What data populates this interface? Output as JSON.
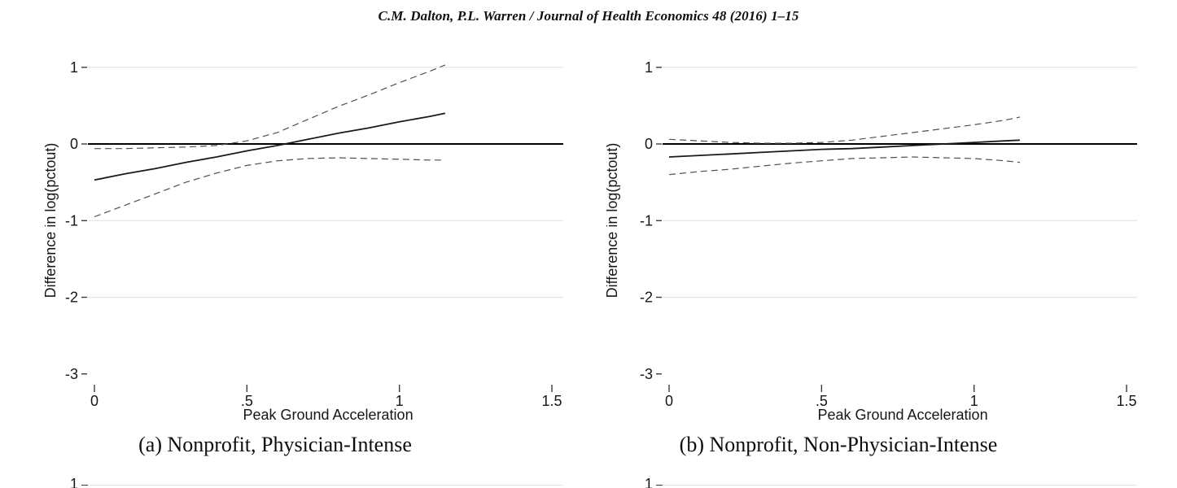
{
  "header": {
    "citation": "C.M. Dalton, P.L. Warren / Journal of Health Economics 48 (2016) 1–15"
  },
  "colors": {
    "grid": "#dce8ea",
    "zero_line": "#000000",
    "fit_line": "#1a1a1a",
    "ci_line": "#4f4f4f",
    "text": "#161616"
  },
  "chart_data": [
    {
      "type": "line",
      "title": "(a) Nonprofit, Physician-Intense",
      "xlabel": "Peak Ground Acceleration",
      "ylabel": "Difference in log(pctout)",
      "xlim": [
        0,
        1.5
      ],
      "ylim": [
        -3,
        1
      ],
      "xticks": [
        0,
        0.5,
        1,
        1.5
      ],
      "xtick_labels": [
        "0",
        ".5",
        "1",
        "1.5"
      ],
      "yticks": [
        1,
        0,
        -1,
        -2,
        -3
      ],
      "ytick_labels": [
        "1",
        "0",
        "-1",
        "-2",
        "-3"
      ],
      "gridlines_y": [
        1,
        -1,
        -2
      ],
      "zero_line": 0,
      "legend": "none",
      "series": [
        {
          "name": "point-estimate",
          "style": "solid",
          "x": [
            0,
            0.1,
            0.2,
            0.3,
            0.4,
            0.5,
            0.6,
            0.7,
            0.8,
            0.9,
            1.0,
            1.1,
            1.15
          ],
          "y": [
            -0.47,
            -0.39,
            -0.32,
            -0.24,
            -0.17,
            -0.09,
            -0.02,
            0.06,
            0.14,
            0.21,
            0.29,
            0.36,
            0.4
          ]
        },
        {
          "name": "ci-upper",
          "style": "dashed",
          "x": [
            0,
            0.1,
            0.2,
            0.3,
            0.4,
            0.5,
            0.6,
            0.7,
            0.8,
            0.9,
            1.0,
            1.1,
            1.15
          ],
          "y": [
            -0.06,
            -0.06,
            -0.05,
            -0.04,
            -0.02,
            0.04,
            0.15,
            0.32,
            0.49,
            0.64,
            0.8,
            0.95,
            1.03
          ]
        },
        {
          "name": "ci-lower",
          "style": "dashed",
          "x": [
            0,
            0.1,
            0.2,
            0.3,
            0.4,
            0.5,
            0.6,
            0.7,
            0.8,
            0.9,
            1.0,
            1.1,
            1.15
          ],
          "y": [
            -0.95,
            -0.8,
            -0.65,
            -0.5,
            -0.38,
            -0.28,
            -0.22,
            -0.19,
            -0.18,
            -0.19,
            -0.2,
            -0.21,
            -0.21
          ]
        }
      ]
    },
    {
      "type": "line",
      "title": "(b) Nonprofit, Non-Physician-Intense",
      "xlabel": "Peak Ground Acceleration",
      "ylabel": "Difference in log(pctout)",
      "xlim": [
        0,
        1.5
      ],
      "ylim": [
        -3,
        1
      ],
      "xticks": [
        0,
        0.5,
        1,
        1.5
      ],
      "xtick_labels": [
        "0",
        ".5",
        "1",
        "1.5"
      ],
      "yticks": [
        1,
        0,
        -1,
        -2,
        -3
      ],
      "ytick_labels": [
        "1",
        "0",
        "-1",
        "-2",
        "-3"
      ],
      "gridlines_y": [
        1,
        -1,
        -2
      ],
      "zero_line": 0,
      "legend": "none",
      "series": [
        {
          "name": "point-estimate",
          "style": "solid",
          "x": [
            0,
            0.1,
            0.2,
            0.3,
            0.4,
            0.5,
            0.6,
            0.7,
            0.8,
            0.9,
            1.0,
            1.1,
            1.15
          ],
          "y": [
            -0.17,
            -0.15,
            -0.13,
            -0.11,
            -0.09,
            -0.07,
            -0.06,
            -0.04,
            -0.02,
            0.0,
            0.02,
            0.04,
            0.05
          ]
        },
        {
          "name": "ci-upper",
          "style": "dashed",
          "x": [
            0,
            0.1,
            0.2,
            0.3,
            0.4,
            0.5,
            0.6,
            0.7,
            0.8,
            0.9,
            1.0,
            1.1,
            1.15
          ],
          "y": [
            0.06,
            0.04,
            0.02,
            0.01,
            0.01,
            0.02,
            0.05,
            0.1,
            0.15,
            0.2,
            0.25,
            0.31,
            0.35
          ]
        },
        {
          "name": "ci-lower",
          "style": "dashed",
          "x": [
            0,
            0.1,
            0.2,
            0.3,
            0.4,
            0.5,
            0.6,
            0.7,
            0.8,
            0.9,
            1.0,
            1.1,
            1.15
          ],
          "y": [
            -0.4,
            -0.36,
            -0.33,
            -0.29,
            -0.25,
            -0.22,
            -0.19,
            -0.18,
            -0.17,
            -0.18,
            -0.19,
            -0.22,
            -0.24
          ]
        }
      ]
    }
  ],
  "next_row": {
    "left_tick_label": "1",
    "right_tick_label": "1"
  }
}
